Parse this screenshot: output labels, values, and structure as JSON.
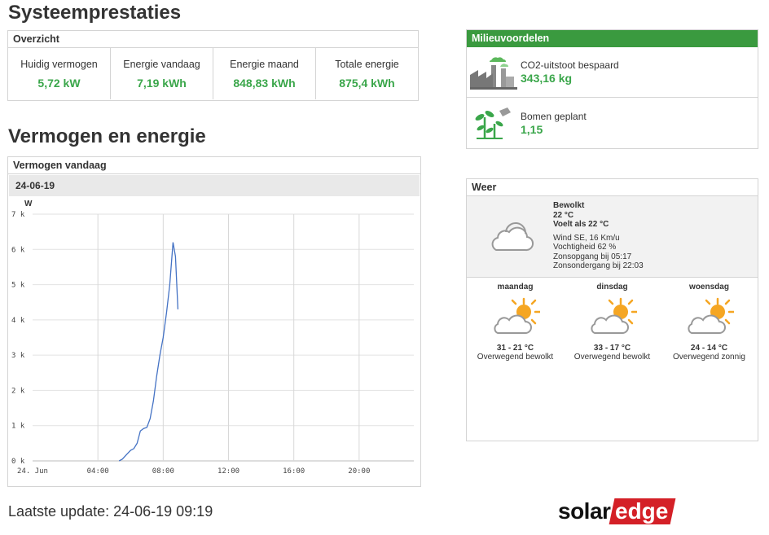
{
  "page": {
    "title": "Systeemprestaties",
    "section_title": "Vermogen en energie",
    "last_update": "Laatste update: 24-06-19 09:19"
  },
  "overview": {
    "title": "Overzicht",
    "items": [
      {
        "label": "Huidig vermogen",
        "value": "5,72 kW"
      },
      {
        "label": "Energie vandaag",
        "value": "7,19 kWh"
      },
      {
        "label": "Energie maand",
        "value": "848,83 kWh"
      },
      {
        "label": "Totale energie",
        "value": "875,4 kWh"
      }
    ]
  },
  "environment": {
    "title": "Milieuvoordelen",
    "co2_label": "CO2-uitstoot bespaard",
    "co2_value": "343,16 kg",
    "trees_label": "Bomen geplant",
    "trees_value": "1,15"
  },
  "chart_panel": {
    "title": "Vermogen vandaag",
    "date": "24-06-19"
  },
  "chart_data": {
    "type": "line",
    "ylabel": "W",
    "x_ticks": [
      "24. Jun",
      "04:00",
      "08:00",
      "12:00",
      "16:00",
      "20:00"
    ],
    "y_ticks": [
      "0 k",
      "1 k",
      "2 k",
      "3 k",
      "4 k",
      "5 k",
      "6 k",
      "7 k"
    ],
    "xlim_hours": [
      0,
      24
    ],
    "ylim": [
      0,
      7000
    ],
    "series": [
      {
        "x_hours": [
          5.3,
          5.5,
          5.8,
          6.0,
          6.2,
          6.4,
          6.6,
          6.8,
          7.0,
          7.2,
          7.4,
          7.6,
          7.8,
          8.0,
          8.2,
          8.4,
          8.6,
          8.75,
          8.9
        ],
        "values": [
          0,
          50,
          200,
          300,
          350,
          500,
          850,
          920,
          950,
          1200,
          1700,
          2400,
          3000,
          3500,
          4200,
          5000,
          6200,
          5800,
          4300
        ],
        "color": "#4472c4"
      }
    ]
  },
  "weather": {
    "title": "Weer",
    "now": {
      "condition": "Bewolkt",
      "temp": "22 °C",
      "feels": "Voelt als 22 °C",
      "wind": "Wind SE, 16 Km/u",
      "humidity": "Vochtigheid 62 %",
      "sunrise": "Zonsopgang bij 05:17",
      "sunset": "Zonsondergang bij 22:03"
    },
    "forecast": [
      {
        "day": "maandag",
        "temp": "31 - 21 °C",
        "desc": "Overwegend bewolkt"
      },
      {
        "day": "dinsdag",
        "temp": "33 - 17 °C",
        "desc": "Overwegend bewolkt"
      },
      {
        "day": "woensdag",
        "temp": "24 - 14 °C",
        "desc": "Overwegend zonnig"
      }
    ]
  },
  "logo": {
    "part1": "solar",
    "part2": "edge"
  },
  "colors": {
    "accent_green": "#3aa64a",
    "header_green": "#3a9a3f",
    "line_blue": "#4472c4",
    "logo_red": "#d42027",
    "sun": "#f5a623"
  }
}
